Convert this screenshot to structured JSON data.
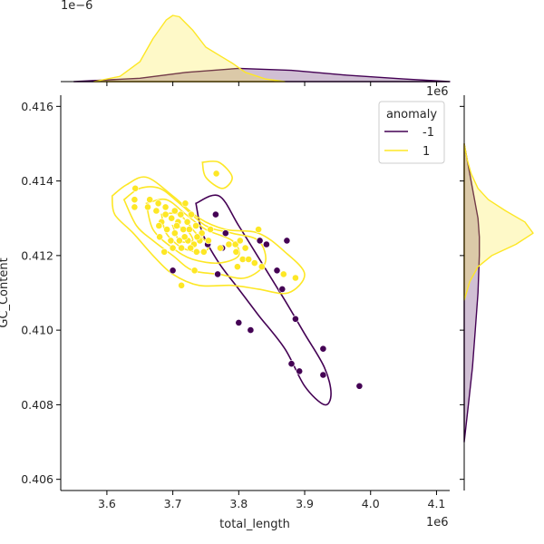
{
  "chart_data": {
    "type": "scatter",
    "xlabel": "total_length",
    "ylabel": "GC_Content",
    "x_offset_label": "1e6",
    "y_offset_label": "",
    "top_marginal_offset_label": "1e−6",
    "right_marginal_offset_label": "1e6",
    "xlim": [
      3.53,
      4.12
    ],
    "ylim": [
      0.4057,
      0.4163
    ],
    "x_ticks": [
      3.6,
      3.7,
      3.8,
      3.9,
      4.0,
      4.1
    ],
    "x_tick_labels": [
      "3.6",
      "3.7",
      "3.8",
      "3.9",
      "4.0",
      "4.1"
    ],
    "y_ticks": [
      0.406,
      0.408,
      0.41,
      0.412,
      0.414,
      0.416
    ],
    "y_tick_labels": [
      "0.406",
      "0.408",
      "0.410",
      "0.412",
      "0.414",
      "0.416"
    ],
    "legend": {
      "title": "anomaly",
      "placement": "top-right",
      "entries": [
        {
          "label": "-1",
          "color": "#440154"
        },
        {
          "label": "1",
          "color": "#fde725"
        }
      ]
    },
    "grid": false,
    "series": [
      {
        "label": "-1",
        "color": "#440154",
        "points": [
          [
            3.765,
            0.4131
          ],
          [
            3.78,
            0.4126
          ],
          [
            3.832,
            0.4124
          ],
          [
            3.842,
            0.4123
          ],
          [
            3.753,
            0.4123
          ],
          [
            3.775,
            0.4122
          ],
          [
            3.7,
            0.4116
          ],
          [
            3.768,
            0.4115
          ],
          [
            3.858,
            0.4116
          ],
          [
            3.866,
            0.4111
          ],
          [
            3.8,
            0.4102
          ],
          [
            3.818,
            0.41
          ],
          [
            3.886,
            0.4103
          ],
          [
            3.928,
            0.4095
          ],
          [
            3.88,
            0.4091
          ],
          [
            3.892,
            0.4089
          ],
          [
            3.928,
            0.4088
          ],
          [
            3.983,
            0.4085
          ],
          [
            3.873,
            0.4124
          ]
        ]
      },
      {
        "label": "1",
        "color": "#fde725",
        "points": [
          [
            3.766,
            0.4142
          ],
          [
            3.643,
            0.4138
          ],
          [
            3.642,
            0.4135
          ],
          [
            3.665,
            0.4135
          ],
          [
            3.678,
            0.4134
          ],
          [
            3.719,
            0.4134
          ],
          [
            3.689,
            0.4133
          ],
          [
            3.703,
            0.4132
          ],
          [
            3.642,
            0.4133
          ],
          [
            3.675,
            0.4132
          ],
          [
            3.712,
            0.4131
          ],
          [
            3.698,
            0.413
          ],
          [
            3.683,
            0.4129
          ],
          [
            3.708,
            0.4129
          ],
          [
            3.722,
            0.4129
          ],
          [
            3.735,
            0.4128
          ],
          [
            3.679,
            0.4128
          ],
          [
            3.691,
            0.4127
          ],
          [
            3.703,
            0.4126
          ],
          [
            3.716,
            0.4127
          ],
          [
            3.725,
            0.4127
          ],
          [
            3.744,
            0.4126
          ],
          [
            3.757,
            0.4127
          ],
          [
            3.68,
            0.4125
          ],
          [
            3.697,
            0.4124
          ],
          [
            3.71,
            0.4124
          ],
          [
            3.723,
            0.4124
          ],
          [
            3.732,
            0.4123
          ],
          [
            3.741,
            0.4124
          ],
          [
            3.754,
            0.4124
          ],
          [
            3.7,
            0.4122
          ],
          [
            3.713,
            0.4122
          ],
          [
            3.727,
            0.4122
          ],
          [
            3.736,
            0.4121
          ],
          [
            3.747,
            0.4121
          ],
          [
            3.772,
            0.4122
          ],
          [
            3.785,
            0.4123
          ],
          [
            3.795,
            0.4123
          ],
          [
            3.802,
            0.4124
          ],
          [
            3.81,
            0.4122
          ],
          [
            3.83,
            0.4127
          ],
          [
            3.796,
            0.4121
          ],
          [
            3.806,
            0.4119
          ],
          [
            3.815,
            0.4119
          ],
          [
            3.824,
            0.4118
          ],
          [
            3.798,
            0.4117
          ],
          [
            3.835,
            0.4117
          ],
          [
            3.868,
            0.4115
          ],
          [
            3.886,
            0.4114
          ],
          [
            3.733,
            0.4116
          ],
          [
            3.713,
            0.4112
          ],
          [
            3.662,
            0.4133
          ],
          [
            3.687,
            0.4121
          ],
          [
            3.706,
            0.4128
          ],
          [
            3.718,
            0.4125
          ],
          [
            3.737,
            0.4125
          ],
          [
            3.689,
            0.4131
          ],
          [
            3.728,
            0.4131
          ]
        ]
      }
    ],
    "kde_contours": [
      {
        "series": "-1",
        "color": "#440154",
        "paths": [
          [
            [
              3.735,
              0.4134
            ],
            [
              3.77,
              0.4136
            ],
            [
              3.8,
              0.4128
            ],
            [
              3.835,
              0.4118
            ],
            [
              3.87,
              0.4108
            ],
            [
              3.9,
              0.4099
            ],
            [
              3.93,
              0.409
            ],
            [
              3.94,
              0.4083
            ],
            [
              3.93,
              0.408
            ],
            [
              3.9,
              0.4085
            ],
            [
              3.87,
              0.4095
            ],
            [
              3.83,
              0.4104
            ],
            [
              3.8,
              0.4111
            ],
            [
              3.77,
              0.4118
            ],
            [
              3.745,
              0.4126
            ],
            [
              3.735,
              0.4134
            ]
          ]
        ]
      },
      {
        "series": "1",
        "color": "#fde725",
        "paths": [
          [
            [
              3.608,
              0.4136
            ],
            [
              3.63,
              0.4139
            ],
            [
              3.66,
              0.4141
            ],
            [
              3.7,
              0.4136
            ],
            [
              3.74,
              0.413
            ],
            [
              3.78,
              0.4127
            ],
            [
              3.83,
              0.4126
            ],
            [
              3.87,
              0.4121
            ],
            [
              3.9,
              0.4115
            ],
            [
              3.875,
              0.411
            ],
            [
              3.83,
              0.4111
            ],
            [
              3.79,
              0.4112
            ],
            [
              3.74,
              0.4112
            ],
            [
              3.7,
              0.4115
            ],
            [
              3.67,
              0.412
            ],
            [
              3.64,
              0.4126
            ],
            [
              3.612,
              0.4131
            ],
            [
              3.608,
              0.4136
            ]
          ],
          [
            [
              3.626,
              0.4135
            ],
            [
              3.65,
              0.4138
            ],
            [
              3.68,
              0.4138
            ],
            [
              3.71,
              0.4134
            ],
            [
              3.75,
              0.4128
            ],
            [
              3.79,
              0.4126
            ],
            [
              3.83,
              0.4124
            ],
            [
              3.84,
              0.4118
            ],
            [
              3.81,
              0.4114
            ],
            [
              3.77,
              0.4115
            ],
            [
              3.73,
              0.4116
            ],
            [
              3.7,
              0.412
            ],
            [
              3.67,
              0.4124
            ],
            [
              3.645,
              0.4128
            ],
            [
              3.626,
              0.4135
            ]
          ],
          [
            [
              3.66,
              0.4134
            ],
            [
              3.69,
              0.4135
            ],
            [
              3.72,
              0.4131
            ],
            [
              3.75,
              0.4127
            ],
            [
              3.79,
              0.4124
            ],
            [
              3.8,
              0.412
            ],
            [
              3.77,
              0.4118
            ],
            [
              3.73,
              0.4119
            ],
            [
              3.7,
              0.4122
            ],
            [
              3.67,
              0.4127
            ],
            [
              3.66,
              0.4134
            ]
          ],
          [
            [
              3.683,
              0.4131
            ],
            [
              3.71,
              0.4131
            ],
            [
              3.735,
              0.4126
            ],
            [
              3.755,
              0.4123
            ],
            [
              3.745,
              0.4121
            ],
            [
              3.715,
              0.4122
            ],
            [
              3.69,
              0.4126
            ],
            [
              3.683,
              0.4131
            ]
          ],
          [
            [
              3.7,
              0.4128
            ],
            [
              3.72,
              0.4127
            ],
            [
              3.73,
              0.4124
            ],
            [
              3.71,
              0.4124
            ],
            [
              3.7,
              0.4128
            ]
          ],
          [
            [
              3.745,
              0.4145
            ],
            [
              3.77,
              0.4145
            ],
            [
              3.79,
              0.4141
            ],
            [
              3.775,
              0.4138
            ],
            [
              3.75,
              0.4141
            ],
            [
              3.745,
              0.4145
            ]
          ]
        ]
      }
    ],
    "top_marginal": {
      "x": [
        3.58,
        3.62,
        3.65,
        3.67,
        3.69,
        3.7,
        3.71,
        3.73,
        3.75,
        3.77,
        3.79,
        3.81,
        3.84,
        3.87
      ],
      "series": [
        {
          "label": "-1",
          "color": "#440154",
          "x": [
            3.55,
            3.65,
            3.72,
            3.8,
            3.88,
            3.96,
            4.05,
            4.12
          ],
          "density": [
            0.0,
            0.05,
            0.14,
            0.2,
            0.17,
            0.1,
            0.04,
            0.0
          ]
        },
        {
          "label": "1",
          "color": "#fde725",
          "density": [
            0.0,
            0.08,
            0.3,
            0.65,
            0.93,
            1.0,
            0.98,
            0.78,
            0.52,
            0.4,
            0.28,
            0.14,
            0.04,
            0.0
          ]
        }
      ]
    },
    "right_marginal": {
      "series": [
        {
          "label": "-1",
          "color": "#440154",
          "y": [
            0.407,
            0.408,
            0.409,
            0.41,
            0.411,
            0.412,
            0.4125,
            0.413,
            0.414,
            0.415
          ],
          "density": [
            0.0,
            0.06,
            0.12,
            0.16,
            0.2,
            0.22,
            0.22,
            0.2,
            0.1,
            0.0
          ]
        },
        {
          "label": "1",
          "color": "#fde725",
          "y": [
            0.4108,
            0.4113,
            0.4117,
            0.412,
            0.4123,
            0.4126,
            0.4129,
            0.4132,
            0.4135,
            0.4138,
            0.4142,
            0.4146,
            0.415
          ],
          "density": [
            0.0,
            0.08,
            0.2,
            0.4,
            0.75,
            1.0,
            0.88,
            0.6,
            0.35,
            0.2,
            0.1,
            0.04,
            0.0
          ]
        }
      ]
    }
  }
}
